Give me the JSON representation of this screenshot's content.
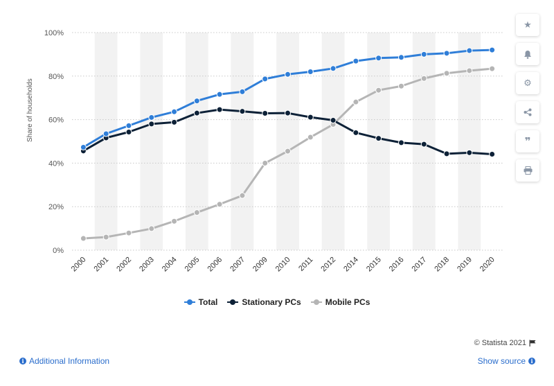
{
  "chart_data": {
    "type": "line",
    "categories": [
      "2000",
      "2001",
      "2002",
      "2003",
      "2004",
      "2005",
      "2006",
      "2007",
      "2009",
      "2010",
      "2011",
      "2012",
      "2014",
      "2015",
      "2016",
      "2017",
      "2018",
      "2019",
      "2020"
    ],
    "ylabel": "Share of households",
    "ylim": [
      0,
      100
    ],
    "yticks": [
      "0%",
      "20%",
      "40%",
      "60%",
      "80%",
      "100%"
    ],
    "series": [
      {
        "name": "Total",
        "color": "#2f7ed8",
        "values": [
          47.3,
          53.5,
          57.2,
          61.0,
          63.6,
          68.6,
          71.6,
          72.8,
          78.7,
          80.8,
          82.0,
          83.5,
          86.9,
          88.3,
          88.6,
          90.0,
          90.5,
          91.7,
          92.0
        ]
      },
      {
        "name": "Stationary PCs",
        "color": "#0d2137",
        "values": [
          45.6,
          51.6,
          54.3,
          58.0,
          58.8,
          63.0,
          64.6,
          63.8,
          62.9,
          63.0,
          61.1,
          59.7,
          54.0,
          51.4,
          49.4,
          48.7,
          44.3,
          44.8,
          44.1
        ]
      },
      {
        "name": "Mobile PCs",
        "color": "#b5b5b5",
        "values": [
          5.4,
          6.0,
          7.9,
          9.9,
          13.3,
          17.3,
          21.1,
          25.1,
          40.0,
          45.5,
          51.9,
          57.8,
          68.1,
          73.5,
          75.4,
          78.9,
          81.3,
          82.5,
          83.4
        ]
      }
    ],
    "grid": true,
    "legend_position": "bottom"
  },
  "legend": {
    "items": [
      {
        "label": "Total",
        "color": "#2f7ed8"
      },
      {
        "label": "Stationary PCs",
        "color": "#0d2137"
      },
      {
        "label": "Mobile PCs",
        "color": "#b5b5b5"
      }
    ]
  },
  "toolbar": {
    "icons": [
      "star-icon",
      "bell-icon",
      "gear-icon",
      "share-icon",
      "quote-icon",
      "print-icon"
    ]
  },
  "footer": {
    "credit": "© Statista 2021",
    "additional_info": "Additional Information",
    "show_source": "Show source"
  }
}
